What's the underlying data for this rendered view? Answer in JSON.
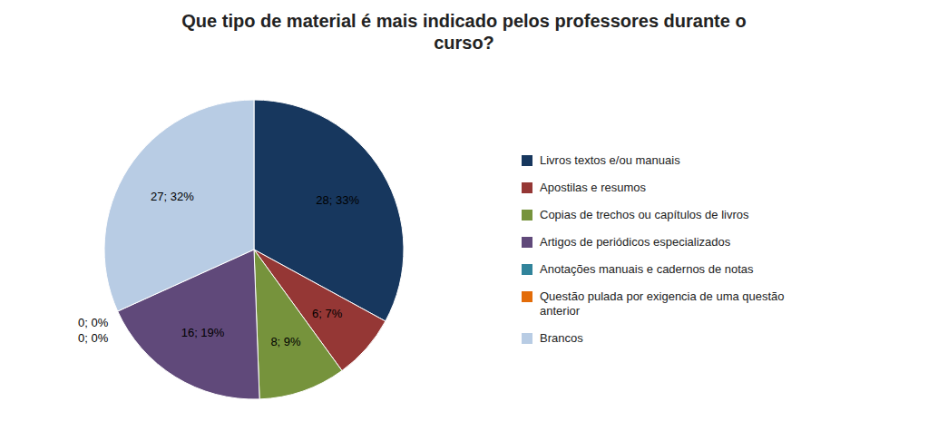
{
  "chart_data": {
    "type": "pie",
    "title": "Que tipo de material é mais indicado pelos professores durante o\ncurso?",
    "categories": [
      "Livros textos e/ou manuais",
      "Apostilas e resumos",
      "Copias de trechos ou capítulos de livros",
      "Artigos de periódicos especializados",
      "Anotações manuais e cadernos de notas",
      "Questão pulada por exigencia de uma questão\nanterior",
      "Brancos"
    ],
    "values": [
      28,
      6,
      8,
      16,
      0,
      0,
      27
    ],
    "value_labels": [
      "28; 33%",
      "6; 7%",
      "8; 9%",
      "16; 19%",
      "0; 0%",
      "0; 0%",
      "27; 32%"
    ],
    "data_labels": true,
    "colors": [
      "#17375E",
      "#953735",
      "#76933C",
      "#60497A",
      "#31849B",
      "#E36C09",
      "#B8CCE4"
    ],
    "legend": "right"
  }
}
